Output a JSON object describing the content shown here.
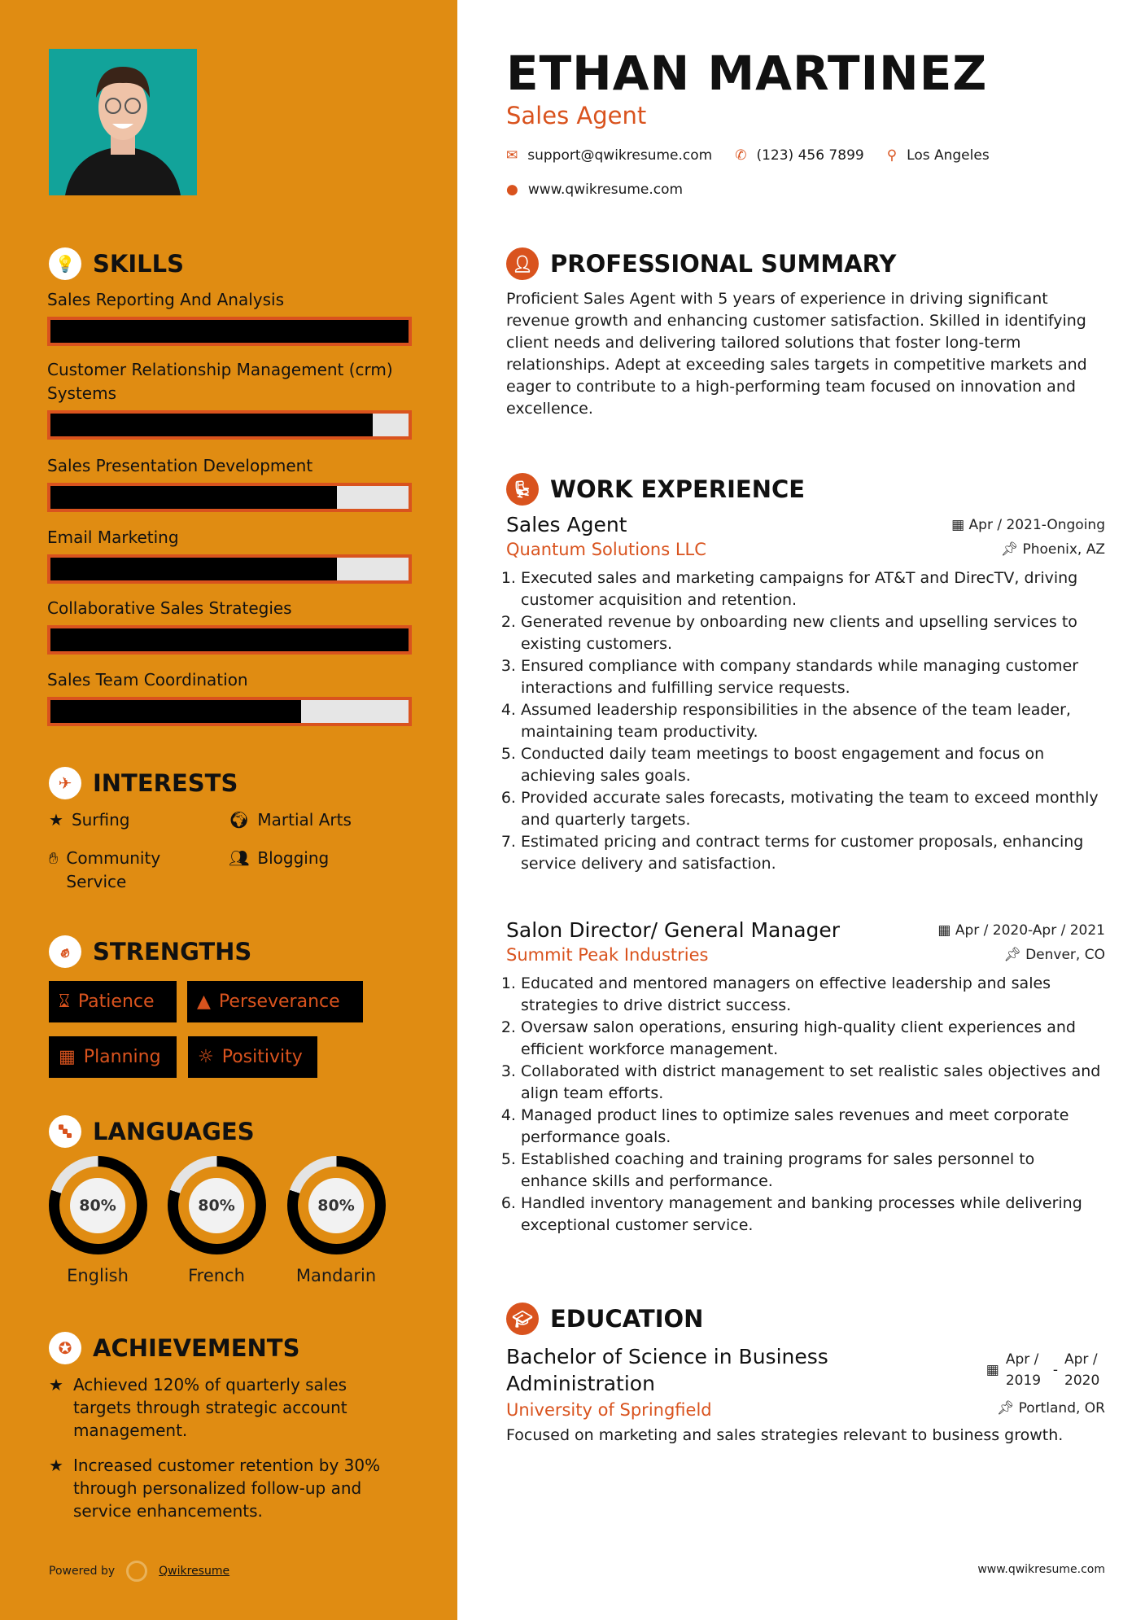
{
  "colors": {
    "sidebar": "#E08C12",
    "accent": "#D9531E",
    "bar_track": "#e6e6e6"
  },
  "header": {
    "name": "ETHAN MARTINEZ",
    "title": "Sales Agent",
    "email": "support@qwikresume.com",
    "phone": "(123) 456 7899",
    "location": "Los Angeles",
    "website": "www.qwikresume.com"
  },
  "skills": {
    "heading": "SKILLS",
    "items": [
      {
        "label": "Sales Reporting And Analysis",
        "level": 100
      },
      {
        "label": "Customer Relationship Management (crm) Systems",
        "level": 90
      },
      {
        "label": "Sales Presentation Development",
        "level": 80
      },
      {
        "label": "Email Marketing",
        "level": 80
      },
      {
        "label": "Collaborative Sales Strategies",
        "level": 100
      },
      {
        "label": "Sales Team Coordination",
        "level": 70
      }
    ]
  },
  "interests": {
    "heading": "INTERESTS",
    "items": [
      {
        "label": "Surfing",
        "icon": "star-icon"
      },
      {
        "label": "Martial Arts",
        "icon": "globe-icon"
      },
      {
        "label": "Community Service",
        "icon": "hand-icon"
      },
      {
        "label": "Blogging",
        "icon": "users-icon"
      }
    ]
  },
  "strengths": {
    "heading": "STRENGTHS",
    "items": [
      {
        "label": "Patience",
        "icon": "hourglass-icon"
      },
      {
        "label": "Perseverance",
        "icon": "road-icon"
      },
      {
        "label": "Planning",
        "icon": "calendar-icon"
      },
      {
        "label": "Positivity",
        "icon": "sun-icon"
      }
    ]
  },
  "languages": {
    "heading": "LANGUAGES",
    "items": [
      {
        "label": "English",
        "percent_text": "80%",
        "level": 80
      },
      {
        "label": "French",
        "percent_text": "80%",
        "level": 80
      },
      {
        "label": "Mandarin",
        "percent_text": "80%",
        "level": 80
      }
    ]
  },
  "achievements": {
    "heading": "ACHIEVEMENTS",
    "items": [
      "Achieved 120% of quarterly sales targets through strategic account management.",
      "Increased customer retention by 30% through personalized follow-up and service enhancements."
    ]
  },
  "footer": {
    "powered_by": "Powered by",
    "brand": "Qwikresume",
    "site": "www.qwikresume.com"
  },
  "summary": {
    "heading": "PROFESSIONAL SUMMARY",
    "text": "Proficient Sales Agent with 5 years of experience in driving significant revenue growth and enhancing customer satisfaction. Skilled in identifying client needs and delivering tailored solutions that foster long-term relationships. Adept at exceeding sales targets in competitive markets and eager to contribute to a high-performing team focused on innovation and excellence."
  },
  "experience": {
    "heading": "WORK EXPERIENCE",
    "jobs": [
      {
        "title": "Sales Agent",
        "company": "Quantum Solutions LLC",
        "dates": "Apr / 2021-Ongoing",
        "location": "Phoenix, AZ",
        "bullets": [
          "Executed sales and marketing campaigns for AT&T and DirecTV, driving customer acquisition and retention.",
          "Generated revenue by onboarding new clients and upselling services to existing customers.",
          "Ensured compliance with company standards while managing customer interactions and fulfilling service requests.",
          "Assumed leadership responsibilities in the absence of the team leader, maintaining team productivity.",
          "Conducted daily team meetings to boost engagement and focus on achieving sales goals.",
          "Provided accurate sales forecasts, motivating the team to exceed monthly and quarterly targets.",
          "Estimated pricing and contract terms for customer proposals, enhancing service delivery and satisfaction."
        ]
      },
      {
        "title": "Salon Director/ General Manager",
        "company": "Summit Peak Industries",
        "dates": "Apr / 2020-Apr / 2021",
        "location": "Denver, CO",
        "bullets": [
          "Educated and mentored managers on effective leadership and sales strategies to drive district success.",
          "Oversaw salon operations, ensuring high-quality client experiences and efficient workforce management.",
          "Collaborated with district management to set realistic sales objectives and align team efforts.",
          "Managed product lines to optimize sales revenues and meet corporate performance goals.",
          "Established coaching and training programs for sales personnel to enhance skills and performance.",
          "Handled inventory management and banking processes while delivering exceptional customer service."
        ]
      }
    ]
  },
  "education": {
    "heading": "EDUCATION",
    "degree": "Bachelor of Science in Business Administration",
    "school": "University of Springfield",
    "start": "Apr / 2019",
    "end": "Apr / 2020",
    "location": "Portland, OR",
    "description": "Focused on marketing and sales strategies relevant to business growth."
  }
}
